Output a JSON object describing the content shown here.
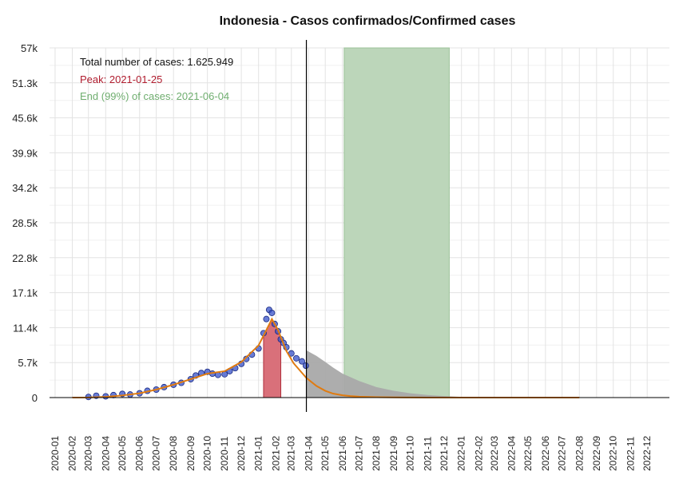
{
  "chart_data": {
    "type": "scatter",
    "title": "Indonesia - Casos confirmados/Confirmed cases",
    "xlabel": "",
    "ylabel": "",
    "grid": true,
    "y_ticks": [
      "0",
      "5.7k",
      "11.4k",
      "17.1k",
      "22.8k",
      "28.5k",
      "34.2k",
      "39.9k",
      "45.6k",
      "51.3k",
      "57k"
    ],
    "y_tick_values": [
      0,
      5700,
      11400,
      17100,
      22800,
      28500,
      34200,
      39900,
      45600,
      51300,
      57000
    ],
    "ylim": [
      0,
      57000
    ],
    "x_ticks": [
      "2020-01",
      "2020-02",
      "2020-03",
      "2020-04",
      "2020-05",
      "2020-06",
      "2020-07",
      "2020-08",
      "2020-09",
      "2020-10",
      "2020-11",
      "2020-12",
      "2021-01",
      "2021-02",
      "2021-03",
      "2021-04",
      "2021-05",
      "2021-06",
      "2021-07",
      "2021-08",
      "2021-09",
      "2021-10",
      "2021-11",
      "2021-12",
      "2022-01",
      "2022-02",
      "2022-03",
      "2022-04",
      "2022-05",
      "2022-06",
      "2022-07",
      "2022-08",
      "2022-09",
      "2022-10",
      "2022-11",
      "2022-12"
    ],
    "xlim": [
      "2019-12-22",
      "2023-01-10"
    ],
    "annotations": {
      "total": "Total number of cases: 1.625.949",
      "peak": "Peak: 2021-01-25",
      "end": "End (99%) of cases: 2021-06-04"
    },
    "today_line_date": "2021-03-28",
    "peak_band": {
      "start": "2021-01-10",
      "end": "2021-02-10",
      "color": "#d9707a"
    },
    "end_band": {
      "start": "2021-06-04",
      "end": "2021-12-10",
      "color": "#bcd6ba"
    },
    "fit_curve": {
      "color": "#e07b10",
      "x": [
        "2020-02-01",
        "2020-03-01",
        "2020-04-01",
        "2020-05-01",
        "2020-06-01",
        "2020-07-01",
        "2020-08-01",
        "2020-09-01",
        "2020-10-01",
        "2020-11-01",
        "2020-12-01",
        "2021-01-01",
        "2021-01-15",
        "2021-01-25",
        "2021-02-05",
        "2021-02-20",
        "2021-03-05",
        "2021-03-28",
        "2021-04-15",
        "2021-05-01",
        "2021-05-15",
        "2021-06-01",
        "2021-06-15",
        "2021-07-01",
        "2021-08-01",
        "2021-09-01",
        "2021-10-01",
        "2021-11-01",
        "2021-12-01",
        "2022-01-01",
        "2022-03-01",
        "2022-05-01",
        "2022-08-01"
      ],
      "y": [
        0,
        20,
        120,
        350,
        700,
        1300,
        2100,
        3000,
        3900,
        4300,
        5800,
        8500,
        11000,
        12800,
        11000,
        7600,
        5600,
        3200,
        1900,
        1100,
        650,
        380,
        240,
        150,
        60,
        25,
        12,
        6,
        3,
        1,
        0,
        0,
        0
      ]
    },
    "projection_area": {
      "color": "#a9a9a9",
      "x": [
        "2021-03-28",
        "2021-04-15",
        "2021-05-01",
        "2021-05-15",
        "2021-06-01",
        "2021-07-01",
        "2021-08-01",
        "2021-09-01",
        "2021-10-01",
        "2021-11-01",
        "2021-12-01",
        "2022-01-01"
      ],
      "y": [
        7700,
        6800,
        5800,
        4900,
        3900,
        2700,
        1700,
        1100,
        700,
        420,
        250,
        120
      ]
    },
    "observed_points": {
      "color": "#3550c8",
      "x": [
        "2020-03-01",
        "2020-03-15",
        "2020-04-01",
        "2020-04-15",
        "2020-05-01",
        "2020-05-15",
        "2020-06-01",
        "2020-06-15",
        "2020-07-01",
        "2020-07-15",
        "2020-08-01",
        "2020-08-15",
        "2020-09-01",
        "2020-09-10",
        "2020-09-20",
        "2020-10-01",
        "2020-10-10",
        "2020-10-20",
        "2020-11-01",
        "2020-11-10",
        "2020-11-20",
        "2020-12-01",
        "2020-12-10",
        "2020-12-20",
        "2021-01-01",
        "2021-01-10",
        "2021-01-15",
        "2021-01-20",
        "2021-01-25",
        "2021-01-30",
        "2021-02-05",
        "2021-02-10",
        "2021-02-15",
        "2021-02-20",
        "2021-03-01",
        "2021-03-10",
        "2021-03-20",
        "2021-03-27"
      ],
      "y": [
        100,
        300,
        200,
        400,
        600,
        500,
        700,
        1100,
        1300,
        1700,
        2100,
        2400,
        3000,
        3600,
        4000,
        4200,
        3900,
        3700,
        3800,
        4300,
        4800,
        5500,
        6300,
        7000,
        8000,
        10500,
        12800,
        14300,
        13800,
        12000,
        10800,
        9500,
        8900,
        8200,
        7200,
        6400,
        5900,
        5200
      ]
    }
  }
}
